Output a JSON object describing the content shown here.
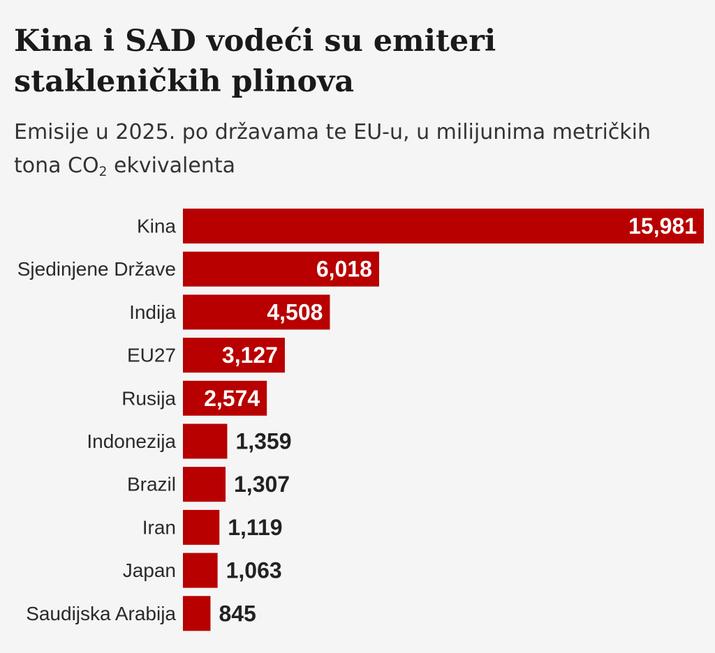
{
  "chart_data": {
    "type": "bar",
    "orientation": "horizontal",
    "title": "Kina i SAD vodeći su emiteri stakleničkih plinova",
    "subtitle_main": "Emisije u 2025. po državama te EU-u, u milijunima metričkih tona CO",
    "subtitle_sub": "2",
    "subtitle_end": " ekvivalenta",
    "categories": [
      "Kina",
      "Sjedinjene Države",
      "Indija",
      "EU27",
      "Rusija",
      "Indonezija",
      "Brazil",
      "Iran",
      "Japan",
      "Saudijska Arabija"
    ],
    "values": [
      15981,
      6018,
      4508,
      3127,
      2574,
      1359,
      1307,
      1119,
      1063,
      845
    ],
    "value_labels": [
      "15,981",
      "6,018",
      "4,508",
      "3,127",
      "2,574",
      "1,359",
      "1,307",
      "1,119",
      "1,063",
      "845"
    ],
    "bar_color": "#b80000",
    "label_inside_color": "#ffffff",
    "label_outside_color": "#222222",
    "xlim": [
      0,
      15981
    ],
    "grid": false,
    "legend": "none"
  }
}
